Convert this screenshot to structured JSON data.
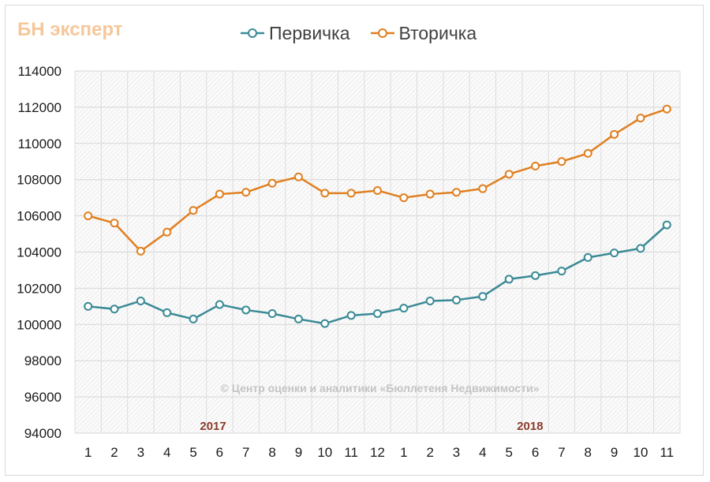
{
  "logo": "БН эксперт",
  "chart_data": {
    "type": "line",
    "title": "",
    "xlabel": "",
    "ylabel": "",
    "categories": [
      "1",
      "2",
      "3",
      "4",
      "5",
      "6",
      "7",
      "8",
      "9",
      "10",
      "11",
      "12",
      "1",
      "2",
      "3",
      "4",
      "5",
      "6",
      "7",
      "8",
      "9",
      "10",
      "11"
    ],
    "year_labels": [
      {
        "label": "2017",
        "at_index": 5.25
      },
      {
        "label": "2018",
        "at_index": 17.3
      }
    ],
    "series": [
      {
        "name": "Первичка",
        "color": "#3a8a96",
        "values": [
          101000,
          100850,
          101300,
          100650,
          100300,
          101100,
          100800,
          100600,
          100300,
          100050,
          100500,
          100600,
          100900,
          101300,
          101350,
          101550,
          102500,
          102700,
          102950,
          103700,
          103950,
          104200,
          105500
        ]
      },
      {
        "name": "Вторичка",
        "color": "#e07f1f",
        "values": [
          106000,
          105600,
          104050,
          105100,
          106300,
          107200,
          107300,
          107800,
          108150,
          107250,
          107250,
          107400,
          107000,
          107200,
          107300,
          107500,
          108300,
          108750,
          109000,
          109450,
          110500,
          111400,
          111900
        ]
      }
    ],
    "ylim": [
      94000,
      114000
    ],
    "yticks": [
      94000,
      96000,
      98000,
      100000,
      102000,
      104000,
      106000,
      108000,
      110000,
      112000,
      114000
    ],
    "grid": true,
    "legend": "top-center",
    "watermark": "© Центр оценки и аналитики «Бюллетеня Недвижимости»"
  }
}
